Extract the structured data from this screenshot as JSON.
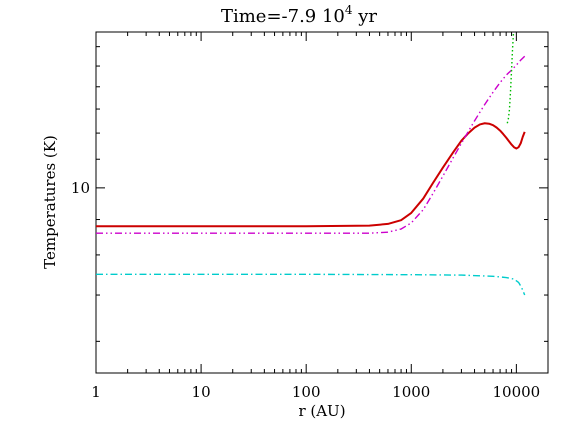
{
  "chart_data": {
    "type": "line",
    "title": "Time=-7.9 10",
    "title_superscript": "4",
    "title_suffix": "yr",
    "xlabel": "r (AU)",
    "ylabel": "Temperatures (K)",
    "xscale": "log",
    "yscale": "log",
    "xlim": [
      1,
      20000
    ],
    "ylim": [
      5.4,
      16.8
    ],
    "x_tick_labels": [
      "1",
      "10",
      "100",
      "1000",
      "10000"
    ],
    "y_tick_labels": [
      "10"
    ],
    "grid": false,
    "legend": "none",
    "series": [
      {
        "color": "#cc0000",
        "style": "solid",
        "x": [
          1,
          10,
          100,
          400,
          600,
          800,
          1000,
          1300,
          1600,
          2000,
          2500,
          3000,
          3500,
          4000,
          4500,
          5000,
          5500,
          6000,
          6500,
          7000,
          7500,
          8000,
          8500,
          9000,
          9500,
          10000,
          10500,
          11000,
          11500,
          12000
        ],
        "y": [
          8.8,
          8.8,
          8.8,
          8.82,
          8.87,
          8.98,
          9.2,
          9.65,
          10.15,
          10.7,
          11.25,
          11.7,
          12.0,
          12.22,
          12.35,
          12.4,
          12.38,
          12.32,
          12.22,
          12.1,
          11.96,
          11.82,
          11.68,
          11.55,
          11.45,
          11.4,
          11.45,
          11.6,
          11.85,
          12.05
        ]
      },
      {
        "color": "#cc00cc",
        "style": "dash-dot-dot",
        "x": [
          1,
          10,
          100,
          400,
          600,
          800,
          1000,
          1300,
          1600,
          2000,
          2500,
          3000,
          4000,
          5000,
          6000,
          7000,
          8000,
          9000,
          10000,
          11000,
          12000
        ],
        "y": [
          8.6,
          8.6,
          8.6,
          8.6,
          8.63,
          8.72,
          8.9,
          9.3,
          9.8,
          10.4,
          11.05,
          11.6,
          12.5,
          13.2,
          13.75,
          14.2,
          14.55,
          14.8,
          15.05,
          15.3,
          15.5
        ]
      },
      {
        "color": "#00bb00",
        "style": "dotted",
        "x": [
          8200,
          8400,
          8600,
          8800,
          9000,
          9200,
          9400
        ],
        "y": [
          12.4,
          12.6,
          13.0,
          13.8,
          14.8,
          15.9,
          16.8
        ]
      },
      {
        "color": "#00cccc",
        "style": "dash-dot",
        "x": [
          1,
          10,
          100,
          1000,
          3000,
          6000,
          8000,
          9500,
          10500,
          11200,
          12000
        ],
        "y": [
          7.5,
          7.5,
          7.5,
          7.49,
          7.48,
          7.45,
          7.42,
          7.38,
          7.3,
          7.18,
          7.0
        ]
      }
    ]
  }
}
